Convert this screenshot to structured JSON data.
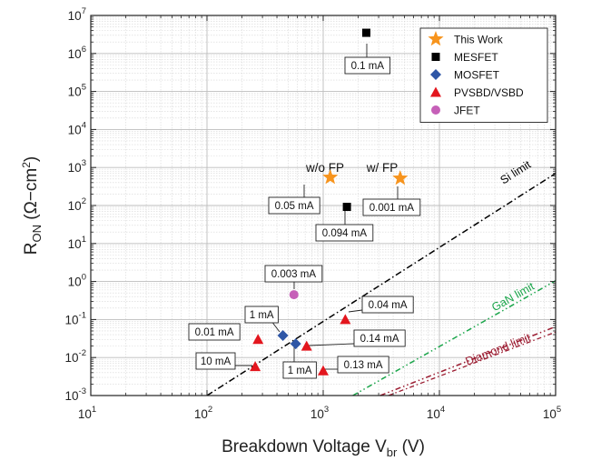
{
  "chart_data": {
    "type": "scatter",
    "xlabel": "Breakdown Voltage V",
    "xlabel_sub": "br",
    "xlabel_unit": " (V)",
    "ylabel": "R",
    "ylabel_sub": "ON",
    "ylabel_unit": " (Ω−cm",
    "ylabel_unit_sup": "2",
    "ylabel_unit_end": ")",
    "x_scale": "log",
    "y_scale": "log",
    "xlim": [
      10,
      100000
    ],
    "ylim": [
      0.001,
      10000000
    ],
    "grid": true,
    "legend_position": "top-right",
    "x_ticks": [
      {
        "base": "10",
        "exp": "1"
      },
      {
        "base": "10",
        "exp": "2"
      },
      {
        "base": "10",
        "exp": "3"
      },
      {
        "base": "10",
        "exp": "4"
      },
      {
        "base": "10",
        "exp": "5"
      }
    ],
    "y_ticks": [
      {
        "base": "10",
        "exp": "-3"
      },
      {
        "base": "10",
        "exp": "-2"
      },
      {
        "base": "10",
        "exp": "-1"
      },
      {
        "base": "10",
        "exp": "0"
      },
      {
        "base": "10",
        "exp": "1"
      },
      {
        "base": "10",
        "exp": "2"
      },
      {
        "base": "10",
        "exp": "3"
      },
      {
        "base": "10",
        "exp": "4"
      },
      {
        "base": "10",
        "exp": "5"
      },
      {
        "base": "10",
        "exp": "6"
      },
      {
        "base": "10",
        "exp": "7"
      }
    ],
    "series": [
      {
        "name": "This Work",
        "marker": "star",
        "color": "#f7941d",
        "points": [
          {
            "x": 1150,
            "y": 550
          },
          {
            "x": 4600,
            "y": 520
          }
        ]
      },
      {
        "name": "MESFET",
        "marker": "square",
        "color": "#000000",
        "points": [
          {
            "x": 2350,
            "y": 3500000
          },
          {
            "x": 1600,
            "y": 92
          }
        ]
      },
      {
        "name": "MOSFET",
        "marker": "diamond",
        "color": "#2e56a6",
        "points": [
          {
            "x": 450,
            "y": 0.038
          },
          {
            "x": 580,
            "y": 0.023
          }
        ]
      },
      {
        "name": "PVSBD/VSBD",
        "marker": "triangle",
        "color": "#e3161e",
        "points": [
          {
            "x": 275,
            "y": 0.03
          },
          {
            "x": 260,
            "y": 0.0058
          },
          {
            "x": 720,
            "y": 0.02
          },
          {
            "x": 1000,
            "y": 0.0045
          },
          {
            "x": 1550,
            "y": 0.1
          }
        ]
      },
      {
        "name": "JFET",
        "marker": "circle",
        "color": "#c660b8",
        "points": [
          {
            "x": 560,
            "y": 0.45
          }
        ]
      }
    ],
    "limits": [
      {
        "name": "Si limit",
        "color": "#000000",
        "points": [
          {
            "x": 100,
            "y": 0.001
          },
          {
            "x": 100000,
            "y": 700
          }
        ]
      },
      {
        "name": "GaN limit",
        "color": "#1aa54a",
        "points": [
          {
            "x": 1800,
            "y": 0.001
          },
          {
            "x": 100000,
            "y": 1.05
          }
        ]
      },
      {
        "name": "Diamond limit",
        "color": "#9b1b30",
        "points": [
          {
            "x": 3100,
            "y": 0.001
          },
          {
            "x": 100000,
            "y": 0.065
          }
        ]
      }
    ],
    "annotations": [
      {
        "text": "0.1 mA"
      },
      {
        "text": "0.094 mA"
      },
      {
        "text": "0.05 mA"
      },
      {
        "text": "0.001 mA"
      },
      {
        "text": "0.003 mA"
      },
      {
        "text": "0.04 mA"
      },
      {
        "text": "0.01 mA"
      },
      {
        "text": "1 mA"
      },
      {
        "text": "1 mA"
      },
      {
        "text": "0.14 mA"
      },
      {
        "text": "10 mA"
      },
      {
        "text": "0.13 mA"
      }
    ],
    "labels": [
      {
        "text": "w/o FP"
      },
      {
        "text": "w/ FP"
      }
    ]
  }
}
